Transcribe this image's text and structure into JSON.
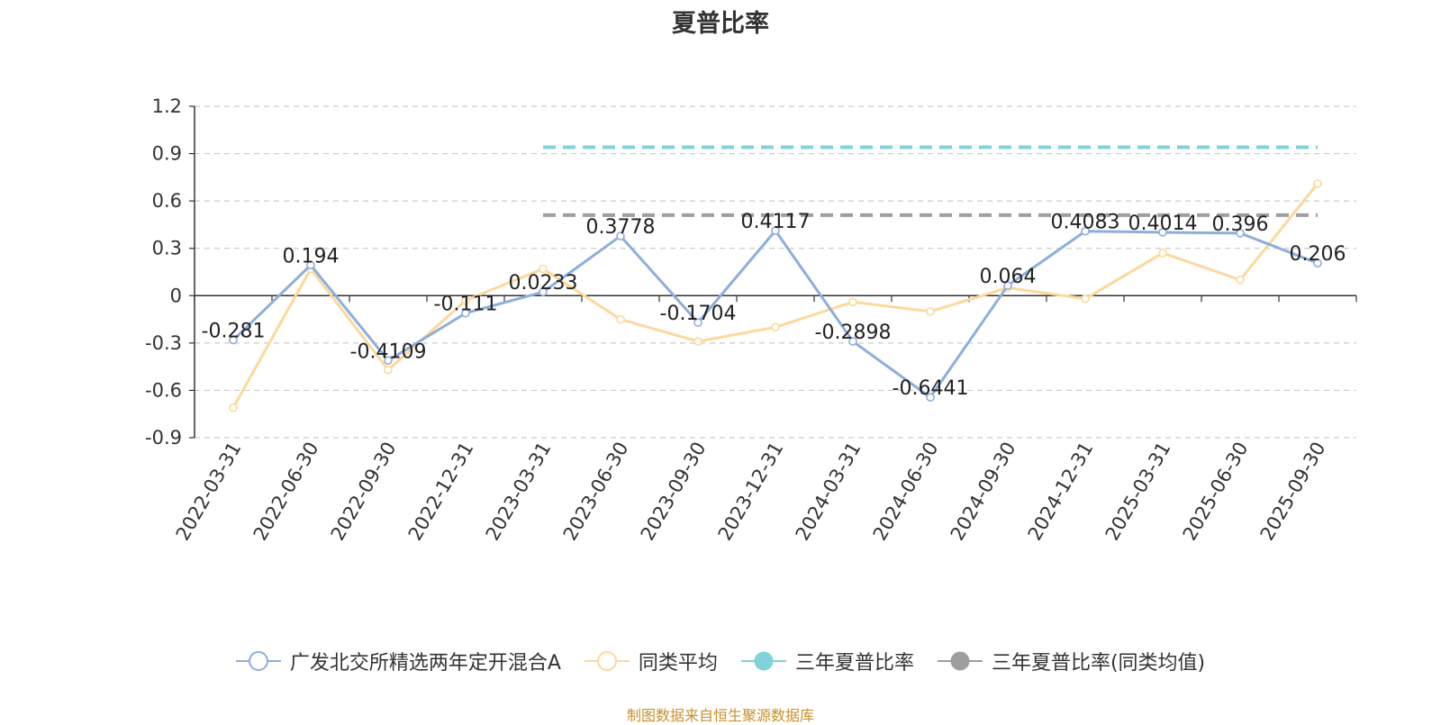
{
  "chart_data": {
    "type": "line",
    "title": "夏普比率",
    "categories": [
      "2022-03-31",
      "2022-06-30",
      "2022-09-30",
      "2022-12-31",
      "2023-03-31",
      "2023-06-30",
      "2023-09-30",
      "2023-12-31",
      "2024-03-31",
      "2024-06-30",
      "2024-09-30",
      "2024-12-31",
      "2025-03-31",
      "2025-06-30",
      "2025-09-30"
    ],
    "ylim": [
      -0.9,
      1.2
    ],
    "yticks": [
      "1.2",
      "0.9",
      "0.6",
      "0.3",
      "0",
      "-0.3",
      "-0.6",
      "-0.9"
    ],
    "grid": true,
    "legend_position": "bottom",
    "series": [
      {
        "name": "广发北交所精选两年定开混合A",
        "color": "#8eaedc",
        "values": [
          -0.281,
          0.194,
          -0.4109,
          -0.111,
          0.0233,
          0.3778,
          -0.1704,
          0.4117,
          -0.2898,
          -0.6441,
          0.064,
          0.4083,
          0.4014,
          0.396,
          0.206
        ],
        "labels": [
          "-0.281",
          "0.194",
          "-0.4109",
          "-0.111",
          "0.0233",
          "0.3778",
          "-0.1704",
          "0.4117",
          "-0.2898",
          "-0.6441",
          "0.064",
          "0.4083",
          "0.4014",
          "0.396",
          "0.206"
        ]
      },
      {
        "name": "同类平均",
        "color": "#fcd99a",
        "values": [
          -0.71,
          0.17,
          -0.47,
          -0.03,
          0.17,
          -0.15,
          -0.29,
          -0.2,
          -0.04,
          -0.1,
          0.05,
          -0.02,
          0.27,
          0.1,
          0.71
        ]
      },
      {
        "name": "三年夏普比率",
        "color": "#7fd3d9",
        "style": "dashed",
        "start_index": 4,
        "value": 0.94
      },
      {
        "name": "三年夏普比率(同类均值)",
        "color": "#9e9e9e",
        "style": "dashed",
        "start_index": 4,
        "value": 0.51
      }
    ]
  },
  "footer": "制图数据来自恒生聚源数据库"
}
